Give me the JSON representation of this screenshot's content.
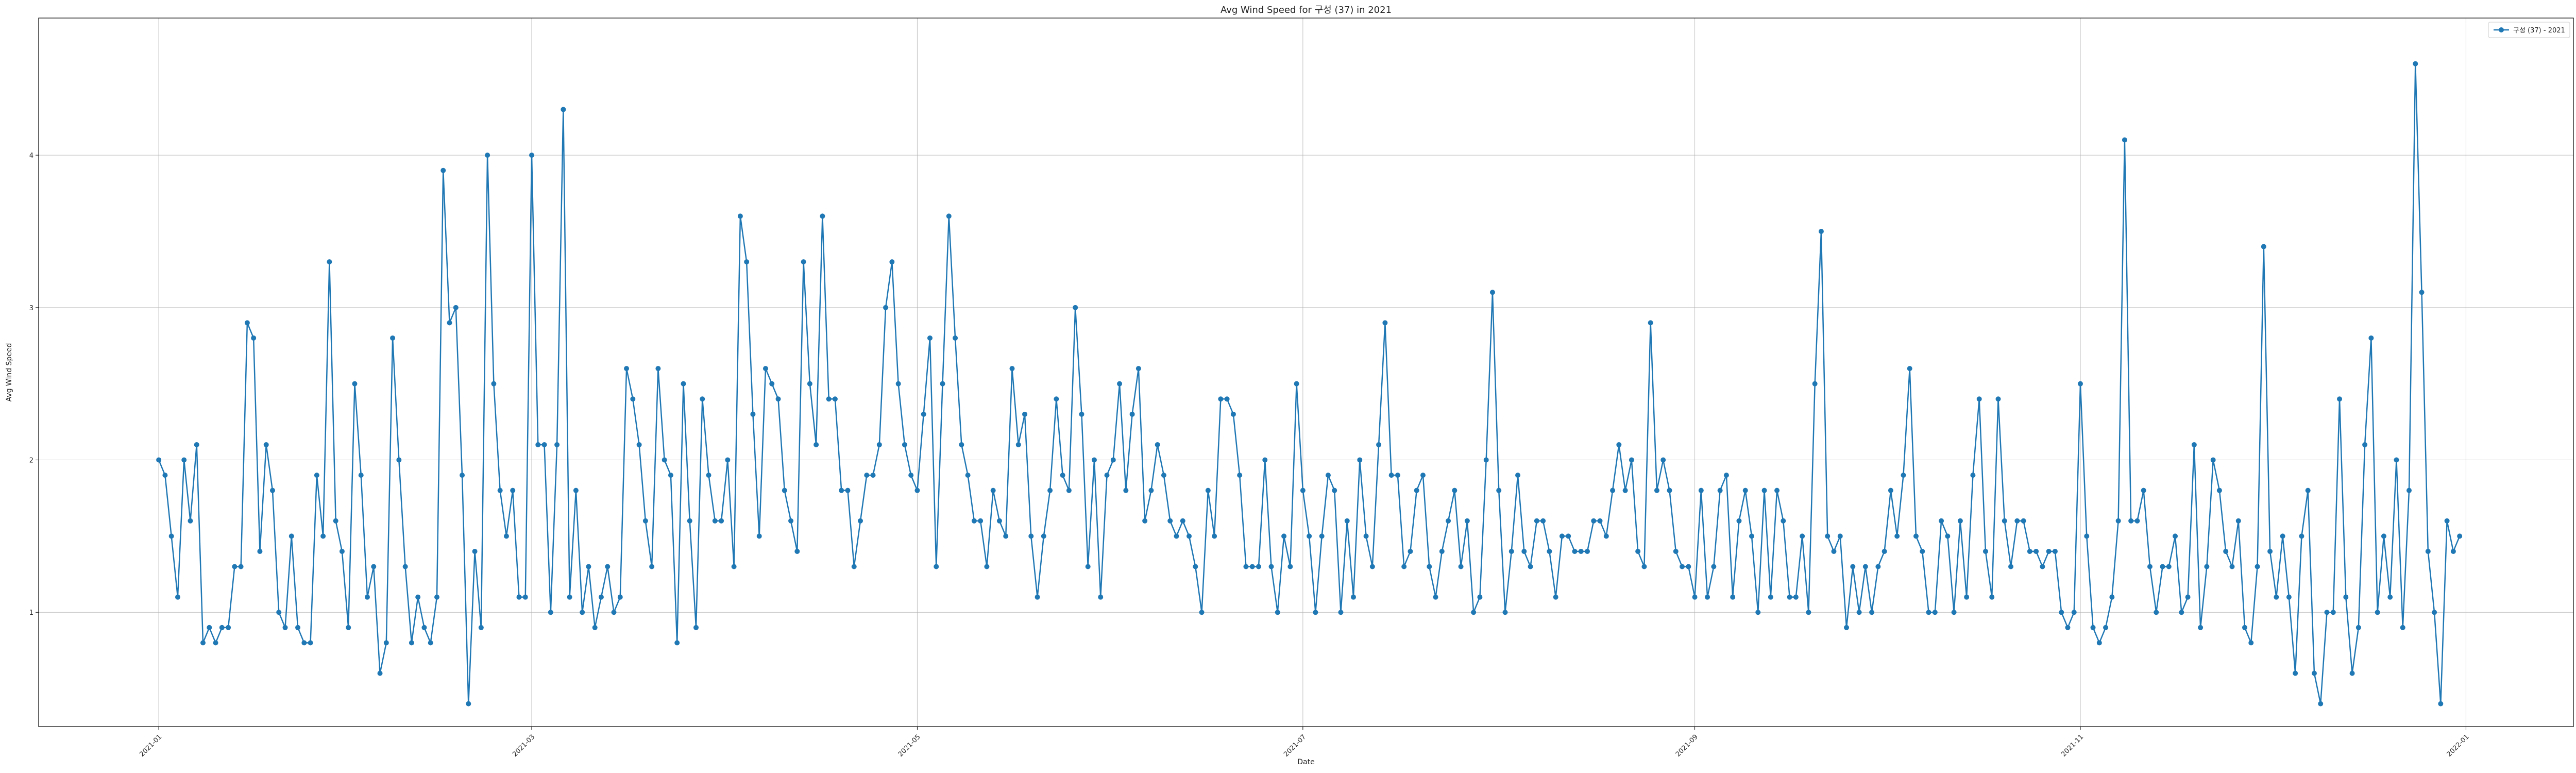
{
  "chart_data": {
    "type": "line",
    "title": "Avg Wind Speed for 구성 (37) in 2021",
    "xlabel": "Date",
    "ylabel": "Avg Wind Speed",
    "x_start": "2021-01-01",
    "x_end": "2021-12-31",
    "xlim": [
      "2020-12-13",
      "2022-01-18"
    ],
    "ylim": [
      0.25,
      4.9
    ],
    "xticks": [
      "2021-01",
      "2021-03",
      "2021-05",
      "2021-07",
      "2021-09",
      "2021-11",
      "2022-01"
    ],
    "yticks": [
      "1",
      "2",
      "3",
      "4"
    ],
    "grid": true,
    "legend_position": "top-right",
    "series": [
      {
        "name": "구성 (37) - 2021",
        "color": "#1f77b4",
        "marker": "circle",
        "values": [
          2.0,
          1.9,
          1.5,
          1.1,
          2.0,
          1.6,
          2.1,
          0.8,
          0.9,
          0.8,
          0.9,
          0.9,
          1.3,
          1.3,
          2.9,
          2.8,
          1.4,
          2.1,
          1.8,
          1.0,
          0.9,
          1.5,
          0.9,
          0.8,
          0.8,
          1.9,
          1.5,
          3.3,
          1.6,
          1.4,
          0.9,
          2.5,
          1.9,
          1.1,
          1.3,
          0.6,
          0.8,
          2.8,
          2.0,
          1.3,
          0.8,
          1.1,
          0.9,
          0.8,
          1.1,
          3.9,
          2.9,
          3.0,
          1.9,
          0.4,
          1.4,
          0.9,
          4.0,
          2.5,
          1.8,
          1.5,
          1.8,
          1.1,
          1.1,
          4.0,
          2.1,
          2.1,
          1.0,
          2.1,
          4.3,
          1.1,
          1.8,
          1.0,
          1.3,
          0.9,
          1.1,
          1.3,
          1.0,
          1.1,
          2.6,
          2.4,
          2.1,
          1.6,
          1.3,
          2.6,
          2.0,
          1.9,
          0.8,
          2.5,
          1.6,
          0.9,
          2.4,
          1.9,
          1.6,
          1.6,
          2.0,
          1.3,
          3.6,
          3.3,
          2.3,
          1.5,
          2.6,
          2.5,
          2.4,
          1.8,
          1.6,
          1.4,
          3.3,
          2.5,
          2.1,
          3.6,
          2.4,
          2.4,
          1.8,
          1.8,
          1.3,
          1.6,
          1.9,
          1.9,
          2.1,
          3.0,
          3.3,
          2.5,
          2.1,
          1.9,
          1.8,
          2.3,
          2.8,
          1.3,
          2.5,
          3.6,
          2.8,
          2.1,
          1.9,
          1.6,
          1.6,
          1.3,
          1.8,
          1.6,
          1.5,
          2.6,
          2.1,
          2.3,
          1.5,
          1.1,
          1.5,
          1.8,
          2.4,
          1.9,
          1.8,
          3.0,
          2.3,
          1.3,
          2.0,
          1.1,
          1.9,
          2.0,
          2.5,
          1.8,
          2.3,
          2.6,
          1.6,
          1.8,
          2.1,
          1.9,
          1.6,
          1.5,
          1.6,
          1.5,
          1.3,
          1.0,
          1.8,
          1.5,
          2.4,
          2.4,
          2.3,
          1.9,
          1.3,
          1.3,
          1.3,
          2.0,
          1.3,
          1.0,
          1.5,
          1.3,
          2.5,
          1.8,
          1.5,
          1.0,
          1.5,
          1.9,
          1.8,
          1.0,
          1.6,
          1.1,
          2.0,
          1.5,
          1.3,
          2.1,
          2.9,
          1.9,
          1.9,
          1.3,
          1.4,
          1.8,
          1.9,
          1.3,
          1.1,
          1.4,
          1.6,
          1.8,
          1.3,
          1.6,
          1.0,
          1.1,
          2.0,
          3.1,
          1.8,
          1.0,
          1.4,
          1.9,
          1.4,
          1.3,
          1.6,
          1.6,
          1.4,
          1.1,
          1.5,
          1.5,
          1.4,
          1.4,
          1.4,
          1.6,
          1.6,
          1.5,
          1.8,
          2.1,
          1.8,
          2.0,
          1.4,
          1.3,
          2.9,
          1.8,
          2.0,
          1.8,
          1.4,
          1.3,
          1.3,
          1.1,
          1.8,
          1.1,
          1.3,
          1.8,
          1.9,
          1.1,
          1.6,
          1.8,
          1.5,
          1.0,
          1.8,
          1.1,
          1.8,
          1.6,
          1.1,
          1.1,
          1.5,
          1.0,
          2.5,
          3.5,
          1.5,
          1.4,
          1.5,
          0.9,
          1.3,
          1.0,
          1.3,
          1.0,
          1.3,
          1.4,
          1.8,
          1.5,
          1.9,
          2.6,
          1.5,
          1.4,
          1.0,
          1.0,
          1.6,
          1.5,
          1.0,
          1.6,
          1.1,
          1.9,
          2.4,
          1.4,
          1.1,
          2.4,
          1.6,
          1.3,
          1.6,
          1.6,
          1.4,
          1.4,
          1.3,
          1.4,
          1.4,
          1.0,
          0.9,
          1.0,
          2.5,
          1.5,
          0.9,
          0.8,
          0.9,
          1.1,
          1.6,
          4.1,
          1.6,
          1.6,
          1.8,
          1.3,
          1.0,
          1.3,
          1.3,
          1.5,
          1.0,
          1.1,
          2.1,
          0.9,
          1.3,
          2.0,
          1.8,
          1.4,
          1.3,
          1.6,
          0.9,
          0.8,
          1.3,
          3.4,
          1.4,
          1.1,
          1.5,
          1.1,
          0.6,
          1.5,
          1.8,
          0.6,
          0.4,
          1.0,
          1.0,
          2.4,
          1.1,
          0.6,
          0.9,
          2.1,
          2.8,
          1.0,
          1.5,
          1.1,
          2.0,
          0.9,
          1.8,
          4.6,
          3.1,
          1.4,
          1.0,
          0.4,
          1.6,
          1.4,
          1.5
        ]
      }
    ]
  }
}
